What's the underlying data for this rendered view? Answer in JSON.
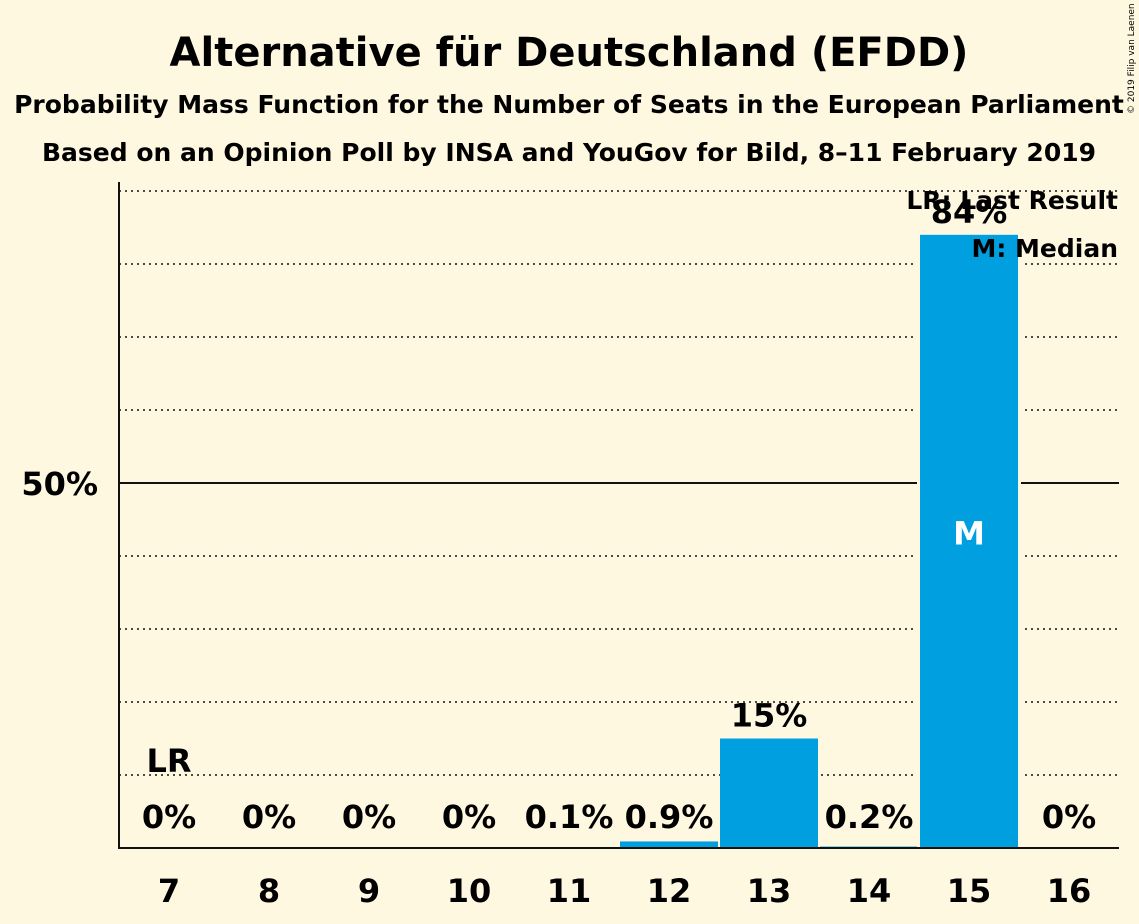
{
  "title": "Alternative für Deutschland (EFDD)",
  "subtitle1": "Probability Mass Function for the Number of Seats in the European Parliament",
  "subtitle2": "Based on an Opinion Poll by INSA and YouGov for Bild, 8–11 February 2019",
  "copyright": "© 2019 Filip van Laenen",
  "legend": {
    "last_result": "LR: Last Result",
    "median": "M: Median"
  },
  "colors": {
    "background": "#FFF8E1",
    "bar": "#00A0E0",
    "text": "#111111"
  },
  "chart_data": {
    "type": "bar",
    "categories": [
      "7",
      "8",
      "9",
      "10",
      "11",
      "12",
      "13",
      "14",
      "15",
      "16"
    ],
    "values": [
      0,
      0,
      0,
      0,
      0.1,
      0.9,
      15,
      0.2,
      84,
      0
    ],
    "data_labels": [
      "0%",
      "0%",
      "0%",
      "0%",
      "0.1%",
      "0.9%",
      "15%",
      "0.2%",
      "84%",
      "0%"
    ],
    "ylim": [
      0,
      91
    ],
    "y_ticks": [
      {
        "value": 50,
        "label": "50%"
      }
    ],
    "gridlines": [
      10,
      20,
      30,
      40,
      50,
      60,
      70,
      80,
      90
    ],
    "last_result": {
      "category": "7",
      "label": "LR"
    },
    "median": {
      "category": "15",
      "label": "M"
    },
    "legend_position": "top-right"
  }
}
